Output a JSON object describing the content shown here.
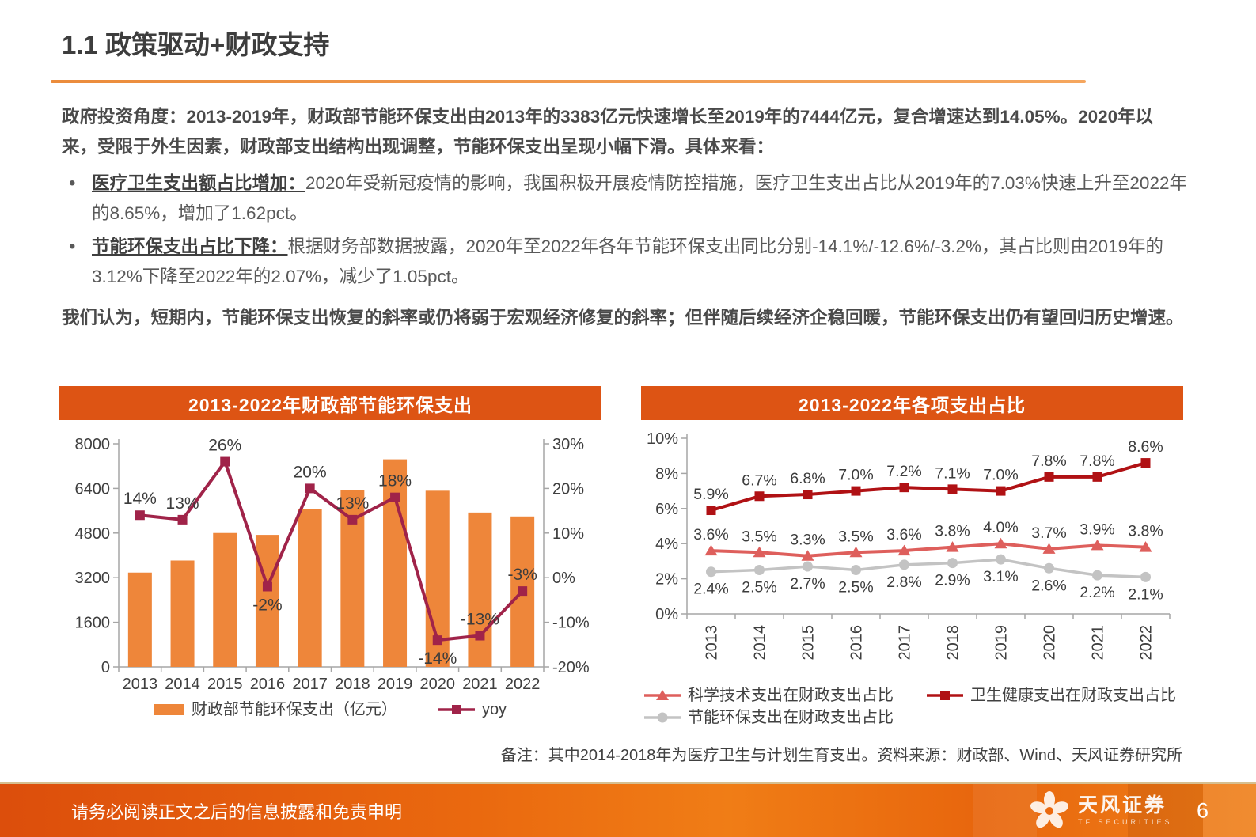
{
  "page": {
    "title": "1.1 政策驱动+财政支持",
    "note": "备注：其中2014-2018年为医疗卫生与计划生育支出。资料来源：财政部、Wind、天风证券研究所",
    "footer": {
      "disclaimer": "请务必阅读正文之后的信息披露和免责申明",
      "page_number": "6",
      "brand_name": "天风证券",
      "brand_sub": "TF SECURITIES"
    }
  },
  "body": {
    "lede": "政府投资角度：2013-2019年，财政部节能环保支出由2013年的3383亿元快速增长至2019年的7444亿元，复合增速达到14.05%。2020年以来，受限于外生因素，财政部支出结构出现调整，节能环保支出呈现小幅下滑。具体来看：",
    "bullets": [
      {
        "lead": "医疗卫生支出额占比增加：",
        "text": "2020年受新冠疫情的影响，我国积极开展疫情防控措施，医疗卫生支出占比从2019年的7.03%快速上升至2022年的8.65%，增加了1.62pct。"
      },
      {
        "lead": "节能环保支出占比下降：",
        "text": "根据财务部数据披露，2020年至2022年各年节能环保支出同比分别-14.1%/-12.6%/-3.2%，其占比则由2019年的3.12%下降至2022年的2.07%，减少了1.05pct。"
      }
    ],
    "conclusion": "我们认为，短期内，节能环保支出恢复的斜率或仍将弱于宏观经济修复的斜率；但伴随后续经济企稳回暖，节能环保支出仍有望回归历史增速。"
  },
  "colors": {
    "banner": "#dd5414",
    "bar": "#ee863a",
    "yoy_line": "#a02349",
    "science": "#de5f5c",
    "health": "#b01114",
    "energy": "#c3c3c3",
    "axis": "#a6a6a6",
    "tick_text": "#3f3f3f",
    "label_text": "#3c3c3c"
  },
  "chart_data": [
    {
      "type": "bar",
      "title": "2013-2022年财政部节能环保支出",
      "categories": [
        "2013",
        "2014",
        "2015",
        "2016",
        "2017",
        "2018",
        "2019",
        "2020",
        "2021",
        "2022"
      ],
      "series": [
        {
          "name": "财政部节能环保支出（亿元）",
          "type": "bar",
          "axis": "left",
          "values": [
            3383,
            3816,
            4802,
            4735,
            5672,
            6353,
            7444,
            6317,
            5536,
            5396
          ]
        },
        {
          "name": "yoy",
          "type": "line",
          "axis": "right",
          "marker": "square",
          "values": [
            14,
            13,
            26,
            -2,
            20,
            13,
            18,
            -14,
            -13,
            -3
          ],
          "labels": [
            "14%",
            "13%",
            "26%",
            "-2%",
            "20%",
            "13%",
            "18%",
            "-14%",
            "-13%",
            "-3%"
          ],
          "label_below_indices": [
            3,
            7
          ]
        }
      ],
      "left_axis": {
        "min": 0,
        "max": 8000,
        "step": 1600,
        "ticks": [
          "8000",
          "6400",
          "4800",
          "3200",
          "1600",
          "0"
        ]
      },
      "right_axis": {
        "min": -20,
        "max": 30,
        "step": 10,
        "ticks": [
          "30%",
          "20%",
          "10%",
          "0%",
          "-10%",
          "-20%"
        ]
      },
      "grid": false,
      "legend_position": "bottom"
    },
    {
      "type": "line",
      "title": "2013-2022年各项支出占比",
      "categories": [
        "2013",
        "2014",
        "2015",
        "2016",
        "2017",
        "2018",
        "2019",
        "2020",
        "2021",
        "2022"
      ],
      "series": [
        {
          "name": "科学技术支出在财政支出占比",
          "marker": "triangle",
          "label_side": "above",
          "values": [
            3.6,
            3.5,
            3.3,
            3.5,
            3.6,
            3.8,
            4.0,
            3.7,
            3.9,
            3.8
          ]
        },
        {
          "name": "卫生健康支出在财政支出占比",
          "marker": "square",
          "label_side": "above",
          "values": [
            5.9,
            6.7,
            6.8,
            7.0,
            7.2,
            7.1,
            7.0,
            7.8,
            7.8,
            8.6
          ]
        },
        {
          "name": "节能环保支出在财政支出占比",
          "marker": "circle",
          "label_side": "below",
          "values": [
            2.4,
            2.5,
            2.7,
            2.5,
            2.8,
            2.9,
            3.1,
            2.6,
            2.2,
            2.1
          ]
        }
      ],
      "y_axis": {
        "min": 0,
        "max": 10,
        "step": 2,
        "ticks": [
          "10%",
          "8%",
          "6%",
          "4%",
          "2%",
          "0%"
        ]
      },
      "grid": false,
      "x_labels_rotated": true,
      "legend_position": "bottom"
    }
  ]
}
